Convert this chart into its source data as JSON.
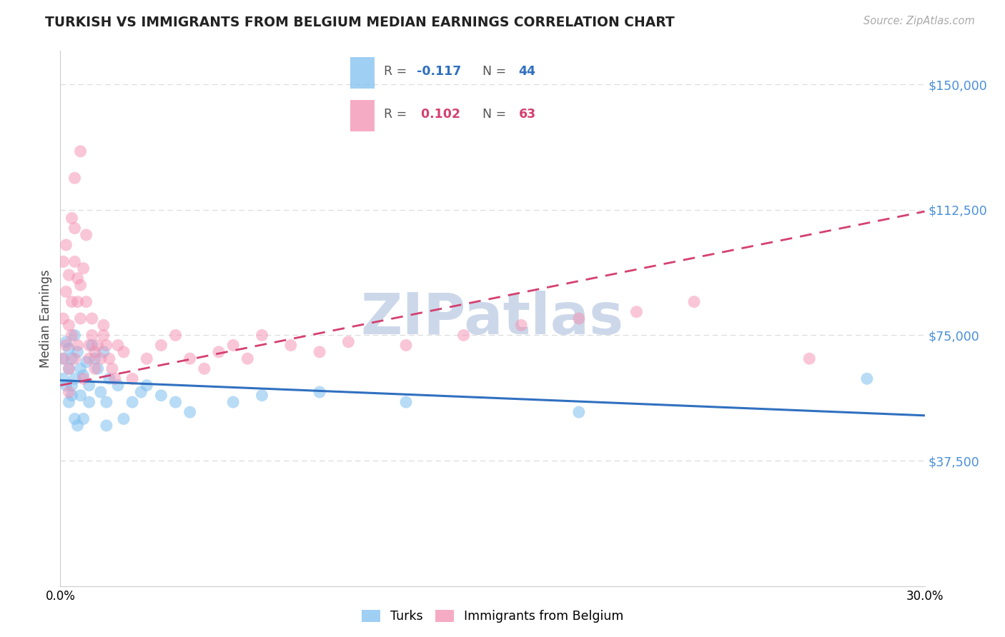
{
  "title": "TURKISH VS IMMIGRANTS FROM BELGIUM MEDIAN EARNINGS CORRELATION CHART",
  "source": "Source: ZipAtlas.com",
  "ylabel": "Median Earnings",
  "xlim": [
    0.0,
    0.3
  ],
  "ylim": [
    0,
    160000
  ],
  "legend_label_blue": "Turks",
  "legend_label_pink": "Immigrants from Belgium",
  "blue_color": "#7fbfef",
  "pink_color": "#f48fb1",
  "trendline_blue_color": "#3070c0",
  "trendline_pink_color": "#d44070",
  "watermark_text": "ZIPatlas",
  "watermark_color": "#ccd8ea",
  "background_color": "#ffffff",
  "grid_color": "#dddddd",
  "axis_tick_color": "#4a90d9",
  "title_color": "#222222",
  "source_color": "#aaaaaa",
  "legend_R_N_text_color": "#555555",
  "legend_box_border": "#cccccc",
  "turks_x": [
    0.001,
    0.001,
    0.002,
    0.002,
    0.003,
    0.003,
    0.003,
    0.004,
    0.004,
    0.004,
    0.005,
    0.005,
    0.005,
    0.006,
    0.006,
    0.007,
    0.007,
    0.008,
    0.008,
    0.009,
    0.01,
    0.01,
    0.011,
    0.012,
    0.013,
    0.014,
    0.015,
    0.016,
    0.016,
    0.017,
    0.02,
    0.022,
    0.025,
    0.028,
    0.03,
    0.035,
    0.04,
    0.045,
    0.06,
    0.07,
    0.09,
    0.12,
    0.18,
    0.28
  ],
  "turks_y": [
    62000,
    68000,
    73000,
    60000,
    65000,
    71000,
    55000,
    68000,
    60000,
    57000,
    75000,
    62000,
    50000,
    70000,
    48000,
    65000,
    57000,
    63000,
    50000,
    67000,
    60000,
    55000,
    72000,
    68000,
    65000,
    58000,
    70000,
    48000,
    55000,
    62000,
    60000,
    50000,
    55000,
    58000,
    60000,
    57000,
    55000,
    52000,
    55000,
    57000,
    58000,
    55000,
    52000,
    62000
  ],
  "belgium_x": [
    0.001,
    0.001,
    0.001,
    0.002,
    0.002,
    0.002,
    0.003,
    0.003,
    0.003,
    0.003,
    0.004,
    0.004,
    0.004,
    0.005,
    0.005,
    0.005,
    0.005,
    0.006,
    0.006,
    0.006,
    0.007,
    0.007,
    0.007,
    0.008,
    0.008,
    0.009,
    0.009,
    0.01,
    0.01,
    0.011,
    0.011,
    0.012,
    0.012,
    0.013,
    0.014,
    0.015,
    0.015,
    0.016,
    0.017,
    0.018,
    0.019,
    0.02,
    0.022,
    0.025,
    0.03,
    0.035,
    0.04,
    0.045,
    0.05,
    0.055,
    0.06,
    0.065,
    0.07,
    0.08,
    0.09,
    0.1,
    0.12,
    0.14,
    0.16,
    0.18,
    0.2,
    0.22,
    0.26
  ],
  "belgium_y": [
    80000,
    97000,
    68000,
    72000,
    88000,
    102000,
    65000,
    78000,
    93000,
    58000,
    110000,
    85000,
    75000,
    122000,
    97000,
    107000,
    68000,
    85000,
    72000,
    92000,
    130000,
    90000,
    80000,
    95000,
    62000,
    85000,
    105000,
    72000,
    68000,
    75000,
    80000,
    65000,
    70000,
    72000,
    68000,
    75000,
    78000,
    72000,
    68000,
    65000,
    62000,
    72000,
    70000,
    62000,
    68000,
    72000,
    75000,
    68000,
    65000,
    70000,
    72000,
    68000,
    75000,
    72000,
    70000,
    73000,
    72000,
    75000,
    78000,
    80000,
    82000,
    85000,
    68000
  ],
  "trendline_blue_x0": 0.0,
  "trendline_blue_y0": 61500,
  "trendline_blue_x1": 0.3,
  "trendline_blue_y1": 51000,
  "trendline_pink_x0": 0.0,
  "trendline_pink_y0": 60000,
  "trendline_pink_x1": 0.3,
  "trendline_pink_y1": 112000
}
